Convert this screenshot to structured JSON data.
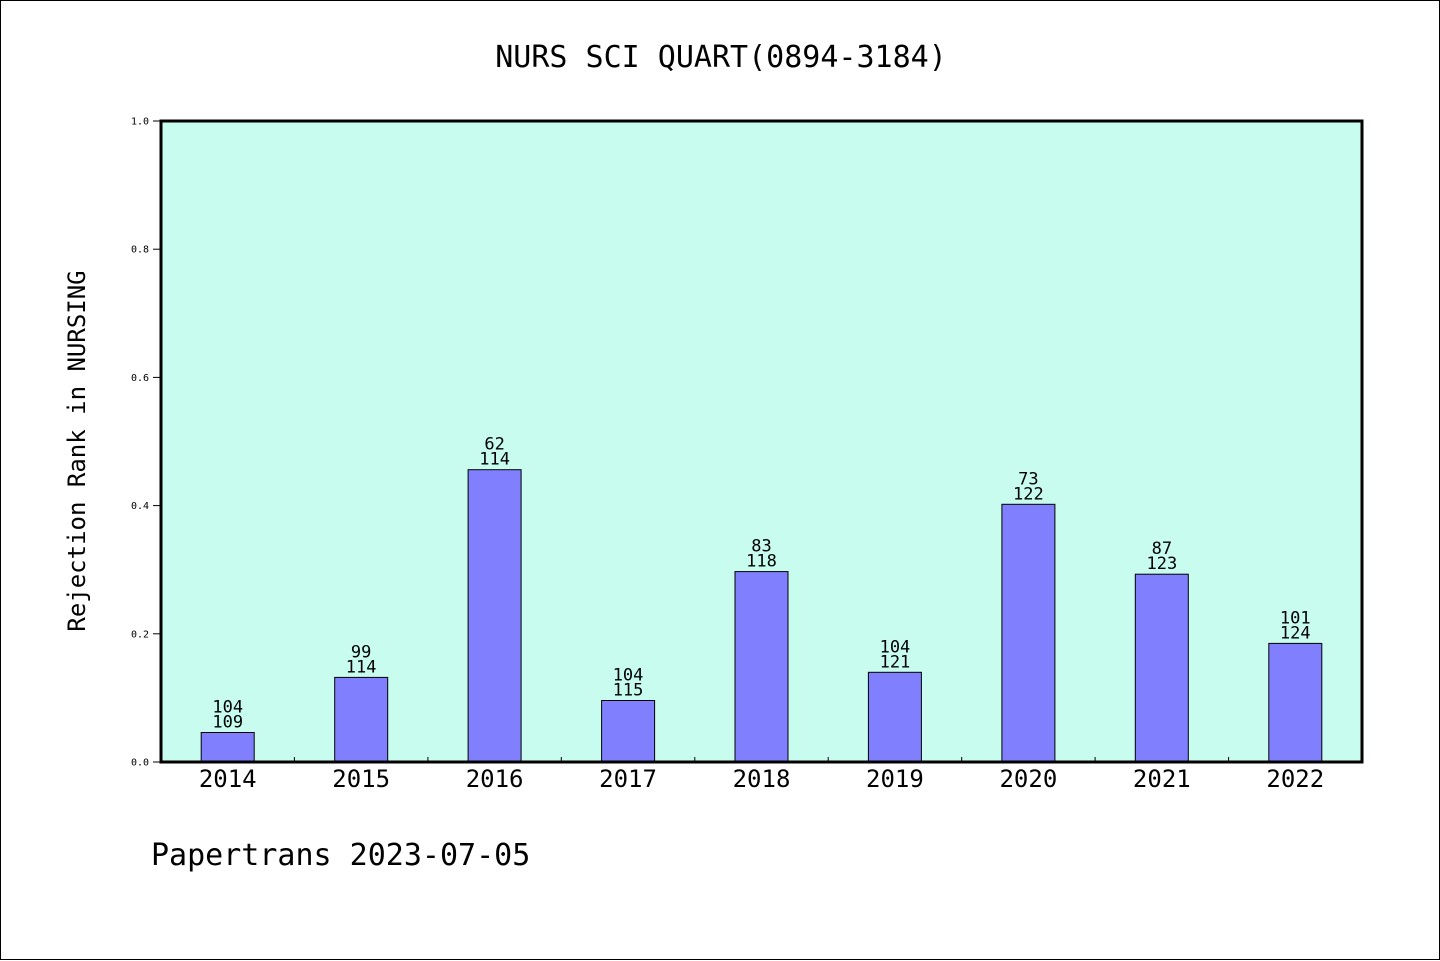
{
  "chart_data": {
    "type": "bar",
    "title": "NURS SCI QUART(0894-3184)",
    "xlabel": "",
    "ylabel": "Rejection Rank in NURSING",
    "ylim": [
      0.0,
      1.0
    ],
    "yticks": [
      "0.0",
      "0.2",
      "0.4",
      "0.6",
      "0.8",
      "1.0"
    ],
    "categories": [
      "2014",
      "2015",
      "2016",
      "2017",
      "2018",
      "2019",
      "2020",
      "2021",
      "2022"
    ],
    "values": [
      0.046,
      0.132,
      0.456,
      0.096,
      0.297,
      0.14,
      0.402,
      0.293,
      0.185
    ],
    "annotations": [
      [
        "104",
        "109"
      ],
      [
        "99",
        "114"
      ],
      [
        "62",
        "114"
      ],
      [
        "104",
        "115"
      ],
      [
        "83",
        "118"
      ],
      [
        "104",
        "121"
      ],
      [
        "73",
        "122"
      ],
      [
        "87",
        "123"
      ],
      [
        "101",
        "124"
      ]
    ],
    "grid": false,
    "colors": {
      "plot_background": "#c8fcee",
      "bar_fill": "#8080ff",
      "bar_stroke": "#000000"
    }
  },
  "footer": {
    "text": "Papertrans 2023-07-05"
  }
}
